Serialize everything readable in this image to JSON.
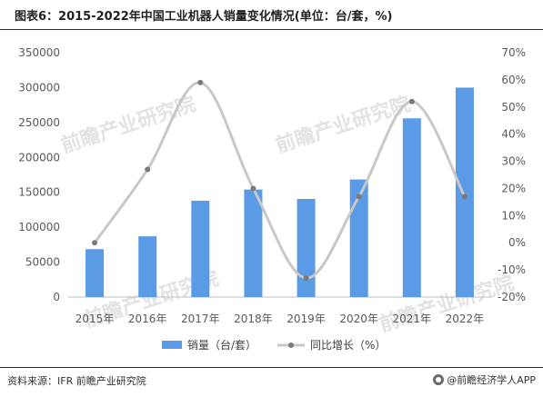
{
  "page": {
    "title": "图表6：2015-2022年中国工业机器人销量变化情况(单位：台/套，%)",
    "source": "资料来源：IFR 前瞻产业研究院",
    "brand": "@前瞻经济学人APP"
  },
  "watermarks": [
    {
      "text": "前瞻产业研究院"
    },
    {
      "text": "前瞻产业研究院"
    },
    {
      "text": "前瞻产业研究院"
    },
    {
      "text": "前瞻产业研究院"
    }
  ],
  "chart_data": {
    "type": "bar",
    "title": "图表6：2015-2022年中国工业机器人销量变化情况(单位：台/套，%)",
    "categories": [
      "2015年",
      "2016年",
      "2017年",
      "2018年",
      "2019年",
      "2020年",
      "2021年",
      "2022年"
    ],
    "series": [
      {
        "name": "销量（台/套）",
        "type": "bar",
        "axis": "left",
        "color": "#5b9be6",
        "values": [
          68600,
          87000,
          138000,
          154000,
          140500,
          168400,
          256000,
          300000
        ]
      },
      {
        "name": "同比增长（%）",
        "type": "line",
        "axis": "right",
        "color": "#c8c8c8",
        "marker_color": "#7a7a7a",
        "values": [
          0,
          27,
          59,
          20,
          -13,
          17,
          52,
          17
        ]
      }
    ],
    "y_left": {
      "min": 0,
      "max": 350000,
      "ticks": [
        0,
        50000,
        100000,
        150000,
        200000,
        250000,
        300000,
        350000
      ],
      "tick_labels": [
        "0",
        "50000",
        "100000",
        "150000",
        "200000",
        "250000",
        "300000",
        "350000"
      ]
    },
    "y_right": {
      "min": -20,
      "max": 70,
      "ticks": [
        -20,
        -10,
        0,
        10,
        20,
        30,
        40,
        50,
        60,
        70
      ],
      "tick_labels": [
        "-20%",
        "-10%",
        "0%",
        "10%",
        "20%",
        "30%",
        "40%",
        "50%",
        "60%",
        "70%"
      ]
    },
    "grid": false,
    "legend": {
      "position": "bottom",
      "items": [
        {
          "label": "销量（台/套）",
          "kind": "bar",
          "color": "#5b9be6"
        },
        {
          "label": "同比增长（%）",
          "kind": "line",
          "color": "#c8c8c8",
          "marker_color": "#7a7a7a"
        }
      ]
    },
    "colors": {
      "axis_line": "#bfbfbf",
      "tick_text": "#595959",
      "watermark": "#e3e3e3"
    }
  }
}
